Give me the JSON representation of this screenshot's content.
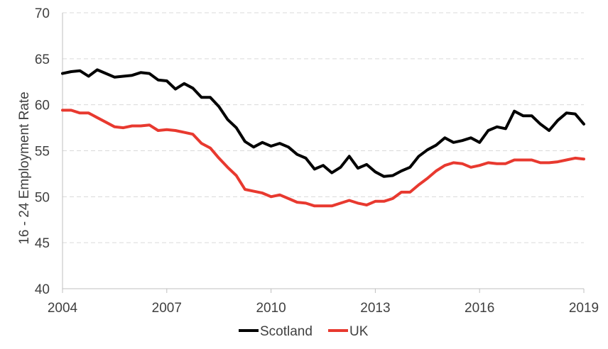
{
  "chart_data": {
    "type": "line",
    "title": "",
    "xlabel": "",
    "ylabel": "16 - 24 Employment  Rate",
    "xlim": [
      2004,
      2019
    ],
    "ylim": [
      40,
      70
    ],
    "x_ticks": [
      "2004",
      "2007",
      "2010",
      "2013",
      "2016",
      "2019"
    ],
    "y_ticks": [
      "40",
      "45",
      "50",
      "55",
      "60",
      "65",
      "70"
    ],
    "grid": "horizontal dashed",
    "legend_position": "bottom",
    "series": [
      {
        "name": "Scotland",
        "color": "#000000",
        "x": [
          2004.0,
          2004.25,
          2004.5,
          2004.75,
          2005.0,
          2005.25,
          2005.5,
          2005.75,
          2006.0,
          2006.25,
          2006.5,
          2006.75,
          2007.0,
          2007.25,
          2007.5,
          2007.75,
          2008.0,
          2008.25,
          2008.5,
          2008.75,
          2009.0,
          2009.25,
          2009.5,
          2009.75,
          2010.0,
          2010.25,
          2010.5,
          2010.75,
          2011.0,
          2011.25,
          2011.5,
          2011.75,
          2012.0,
          2012.25,
          2012.5,
          2012.75,
          2013.0,
          2013.25,
          2013.5,
          2013.75,
          2014.0,
          2014.25,
          2014.5,
          2014.75,
          2015.0,
          2015.25,
          2015.5,
          2015.75,
          2016.0,
          2016.25,
          2016.5,
          2016.75,
          2017.0,
          2017.25,
          2017.5,
          2017.75,
          2018.0,
          2018.25,
          2018.5,
          2018.75,
          2019.0
        ],
        "y": [
          63.4,
          63.6,
          63.7,
          63.1,
          63.8,
          63.4,
          63.0,
          63.1,
          63.2,
          63.5,
          63.4,
          62.7,
          62.6,
          61.7,
          62.3,
          61.8,
          60.8,
          60.8,
          59.8,
          58.4,
          57.5,
          56.0,
          55.4,
          55.9,
          55.5,
          55.8,
          55.4,
          54.6,
          54.2,
          53.0,
          53.4,
          52.6,
          53.2,
          54.4,
          53.1,
          53.5,
          52.7,
          52.2,
          52.3,
          52.8,
          53.2,
          54.4,
          55.1,
          55.6,
          56.4,
          55.9,
          56.1,
          56.4,
          55.9,
          57.2,
          57.6,
          57.4,
          59.3,
          58.8,
          58.8,
          57.9,
          57.2,
          58.3,
          59.1,
          59.0,
          57.9
        ]
      },
      {
        "name": "UK",
        "color": "#e8392f",
        "x": [
          2004.0,
          2004.25,
          2004.5,
          2004.75,
          2005.0,
          2005.25,
          2005.5,
          2005.75,
          2006.0,
          2006.25,
          2006.5,
          2006.75,
          2007.0,
          2007.25,
          2007.5,
          2007.75,
          2008.0,
          2008.25,
          2008.5,
          2008.75,
          2009.0,
          2009.25,
          2009.5,
          2009.75,
          2010.0,
          2010.25,
          2010.5,
          2010.75,
          2011.0,
          2011.25,
          2011.5,
          2011.75,
          2012.0,
          2012.25,
          2012.5,
          2012.75,
          2013.0,
          2013.25,
          2013.5,
          2013.75,
          2014.0,
          2014.25,
          2014.5,
          2014.75,
          2015.0,
          2015.25,
          2015.5,
          2015.75,
          2016.0,
          2016.25,
          2016.5,
          2016.75,
          2017.0,
          2017.25,
          2017.5,
          2017.75,
          2018.0,
          2018.25,
          2018.5,
          2018.75,
          2019.0
        ],
        "y": [
          59.4,
          59.4,
          59.1,
          59.1,
          58.6,
          58.1,
          57.6,
          57.5,
          57.7,
          57.7,
          57.8,
          57.2,
          57.3,
          57.2,
          57.0,
          56.8,
          55.8,
          55.3,
          54.2,
          53.2,
          52.3,
          50.8,
          50.6,
          50.4,
          50.0,
          50.2,
          49.8,
          49.4,
          49.3,
          49.0,
          49.0,
          49.0,
          49.3,
          49.6,
          49.3,
          49.1,
          49.5,
          49.5,
          49.8,
          50.5,
          50.5,
          51.3,
          52.0,
          52.8,
          53.4,
          53.7,
          53.6,
          53.2,
          53.4,
          53.7,
          53.6,
          53.6,
          54.0,
          54.0,
          54.0,
          53.7,
          53.7,
          53.8,
          54.0,
          54.2,
          54.1
        ]
      }
    ]
  }
}
